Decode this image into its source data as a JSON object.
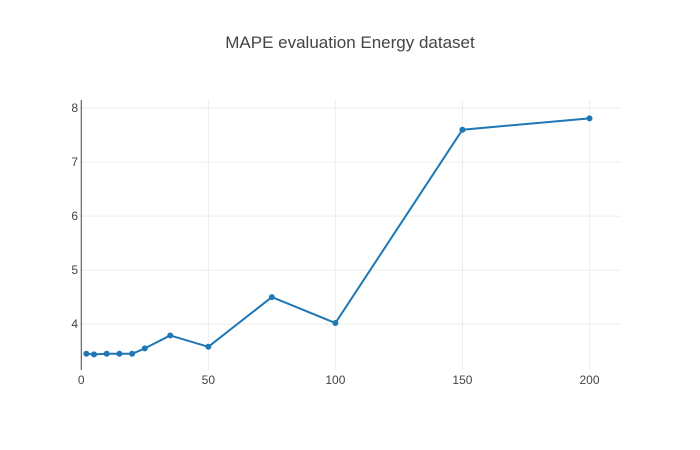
{
  "chart_data": {
    "type": "line",
    "title": "MAPE evaluation Energy dataset",
    "xlabel": "",
    "ylabel": "",
    "x": [
      2,
      5,
      10,
      15,
      20,
      25,
      35,
      50,
      75,
      100,
      150,
      200
    ],
    "series": [
      {
        "values": [
          3.45,
          3.44,
          3.45,
          3.45,
          3.45,
          3.55,
          3.79,
          3.58,
          4.5,
          4.02,
          7.6,
          7.81
        ]
      }
    ],
    "xlim": [
      -0.5,
      212
    ],
    "ylim": [
      3.15,
      8.15
    ],
    "xticks": [
      0,
      50,
      100,
      150,
      200
    ],
    "yticks": [
      4,
      5,
      6,
      7,
      8
    ],
    "grid": true,
    "legend": "none",
    "colors": {
      "line": "#1f77b4",
      "grid": "#eeeeee",
      "axis": "#444444"
    }
  }
}
